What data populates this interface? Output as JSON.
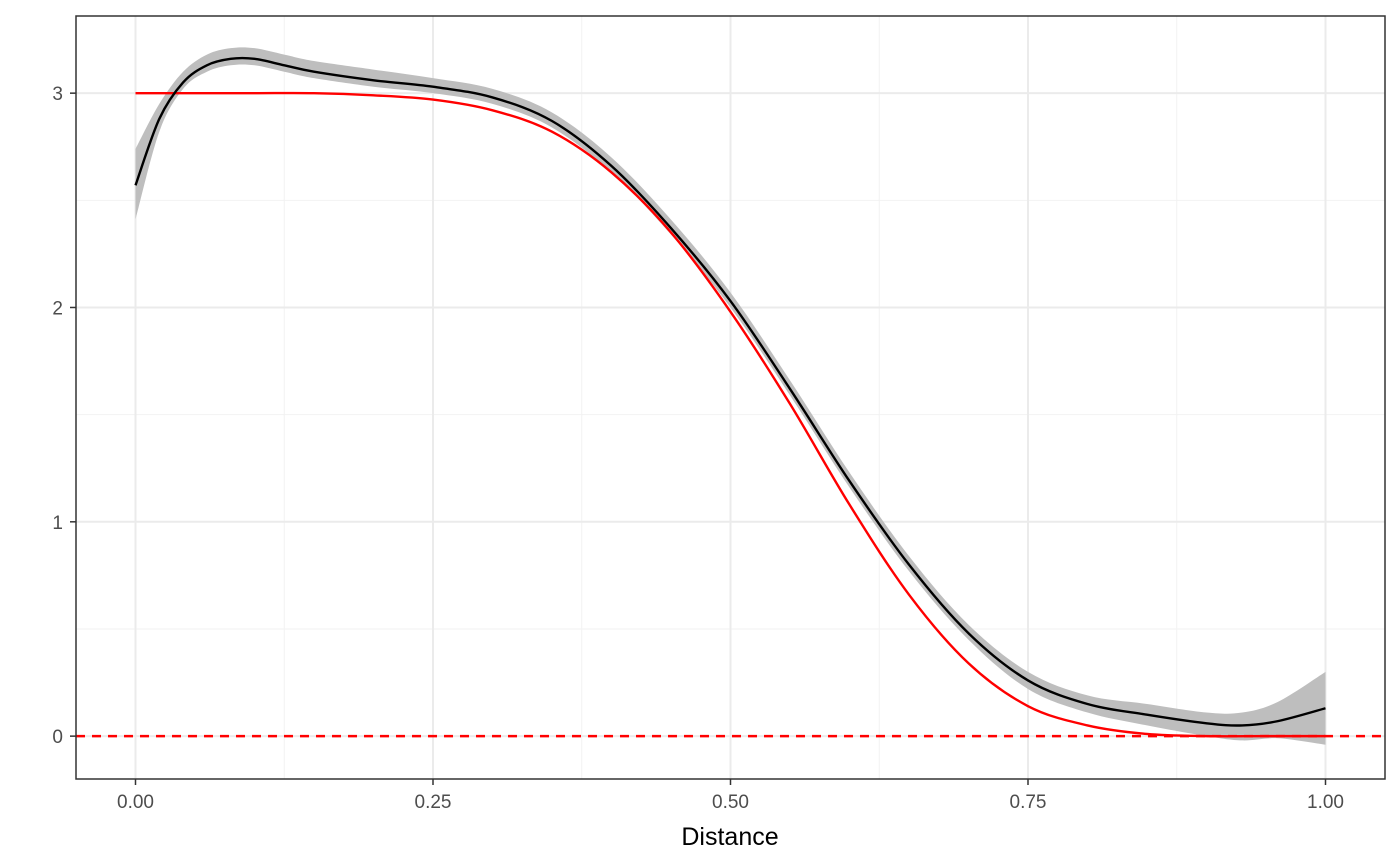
{
  "chart_data": {
    "type": "line",
    "title": "",
    "xlabel": "Distance",
    "ylabel": "",
    "xlim": [
      -0.05,
      1.05
    ],
    "ylim": [
      -0.2,
      3.36
    ],
    "x_ticks": [
      0.0,
      0.25,
      0.5,
      0.75,
      1.0
    ],
    "x_tick_labels": [
      "0.00",
      "0.25",
      "0.50",
      "0.75",
      "1.00"
    ],
    "y_ticks": [
      0,
      1,
      2,
      3
    ],
    "y_tick_labels": [
      "0",
      "1",
      "2",
      "3"
    ],
    "grid": true,
    "legend": "none",
    "colors": {
      "fit": "#000000",
      "band": "#bebebe",
      "truth": "#ff0000",
      "reference": "#ff0000",
      "panel_border": "#333333"
    },
    "reference_line": {
      "y": 0,
      "style": "dashed"
    },
    "series": [
      {
        "role": "smoothed fit",
        "x": [
          0.0,
          0.02,
          0.04,
          0.06,
          0.08,
          0.1,
          0.125,
          0.15,
          0.2,
          0.25,
          0.3,
          0.35,
          0.4,
          0.45,
          0.5,
          0.55,
          0.6,
          0.65,
          0.7,
          0.75,
          0.8,
          0.85,
          0.9,
          0.93,
          0.96,
          1.0
        ],
        "y": [
          2.57,
          2.88,
          3.05,
          3.13,
          3.16,
          3.16,
          3.13,
          3.1,
          3.06,
          3.03,
          2.98,
          2.87,
          2.66,
          2.37,
          2.03,
          1.62,
          1.19,
          0.8,
          0.48,
          0.26,
          0.15,
          0.1,
          0.06,
          0.05,
          0.07,
          0.13
        ],
        "ci_lower": [
          2.41,
          2.82,
          3.02,
          3.1,
          3.13,
          3.13,
          3.1,
          3.07,
          3.03,
          3.0,
          2.95,
          2.84,
          2.63,
          2.34,
          2.0,
          1.59,
          1.16,
          0.77,
          0.45,
          0.22,
          0.11,
          0.05,
          0.0,
          -0.02,
          -0.01,
          -0.04
        ],
        "ci_upper": [
          2.74,
          2.95,
          3.1,
          3.18,
          3.21,
          3.21,
          3.18,
          3.15,
          3.11,
          3.07,
          3.02,
          2.91,
          2.7,
          2.41,
          2.07,
          1.66,
          1.23,
          0.84,
          0.52,
          0.3,
          0.19,
          0.15,
          0.11,
          0.11,
          0.16,
          0.3
        ]
      },
      {
        "role": "true curve",
        "x": [
          0.0,
          0.05,
          0.1,
          0.15,
          0.2,
          0.25,
          0.3,
          0.35,
          0.4,
          0.45,
          0.5,
          0.55,
          0.6,
          0.65,
          0.7,
          0.75,
          0.8,
          0.85,
          0.9,
          0.95,
          1.0
        ],
        "y": [
          3.0,
          3.0,
          3.0,
          3.0,
          2.99,
          2.97,
          2.92,
          2.82,
          2.63,
          2.35,
          1.98,
          1.55,
          1.08,
          0.66,
          0.34,
          0.14,
          0.05,
          0.01,
          0.0,
          0.0,
          0.0
        ]
      }
    ]
  }
}
